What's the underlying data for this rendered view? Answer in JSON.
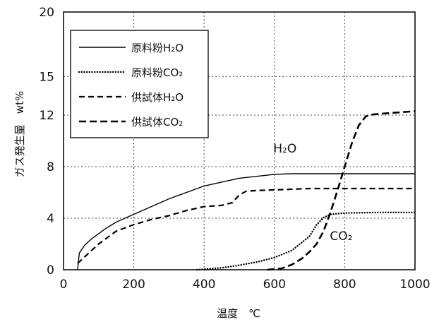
{
  "chart_data": {
    "type": "line",
    "title": "",
    "xlabel": "温度　℃",
    "ylabel": "ガス発生量　wt%",
    "xlim": [
      0,
      1000
    ],
    "ylim": [
      0,
      20
    ],
    "x_ticks": [
      "0",
      "200",
      "400",
      "600",
      "800",
      "1000"
    ],
    "y_ticks": [
      "0",
      "4",
      "8",
      "12",
      "15",
      "20"
    ],
    "y_tick_values": [
      0,
      4,
      8,
      12,
      15,
      20
    ],
    "grid": true,
    "legend_position": "top-left",
    "series": [
      {
        "name": "原料粉H₂O",
        "style": "solid",
        "x": [
          40,
          45,
          60,
          80,
          100,
          120,
          150,
          200,
          300,
          400,
          500,
          600,
          650,
          700,
          800,
          900,
          1000
        ],
        "y": [
          0,
          1.3,
          1.9,
          2.4,
          2.8,
          3.2,
          3.7,
          4.3,
          5.5,
          6.5,
          7.1,
          7.4,
          7.45,
          7.45,
          7.45,
          7.45,
          7.45
        ]
      },
      {
        "name": "原料粉CO₂",
        "style": "dotted",
        "x": [
          380,
          450,
          500,
          550,
          600,
          650,
          700,
          720,
          740,
          760,
          800,
          900,
          1000
        ],
        "y": [
          0,
          0.15,
          0.35,
          0.6,
          0.95,
          1.5,
          2.6,
          3.5,
          4.05,
          4.3,
          4.4,
          4.45,
          4.45
        ]
      },
      {
        "name": "供試体H₂O",
        "style": "dashed",
        "x": [
          40,
          60,
          100,
          150,
          200,
          250,
          300,
          350,
          400,
          450,
          480,
          500,
          520,
          550,
          600,
          700,
          800,
          900,
          1000
        ],
        "y": [
          0.5,
          1.0,
          2.0,
          3.0,
          3.5,
          3.9,
          4.2,
          4.6,
          4.9,
          5.0,
          5.2,
          5.8,
          6.1,
          6.15,
          6.2,
          6.3,
          6.3,
          6.3,
          6.3
        ]
      },
      {
        "name": "供試体CO₂",
        "style": "dashed-heavy",
        "x": [
          580,
          620,
          650,
          680,
          700,
          720,
          740,
          760,
          780,
          800,
          820,
          840,
          860,
          880,
          900,
          950,
          1000
        ],
        "y": [
          0,
          0.1,
          0.4,
          0.9,
          1.4,
          2.0,
          3.0,
          4.5,
          6.2,
          8.0,
          9.8,
          11.2,
          11.9,
          12.05,
          12.1,
          12.2,
          12.3
        ]
      }
    ],
    "annotations": [
      {
        "text": "H₂O",
        "x": 630,
        "y": 9.1
      },
      {
        "text": "CO₂",
        "x": 790,
        "y": 2.3
      }
    ]
  }
}
